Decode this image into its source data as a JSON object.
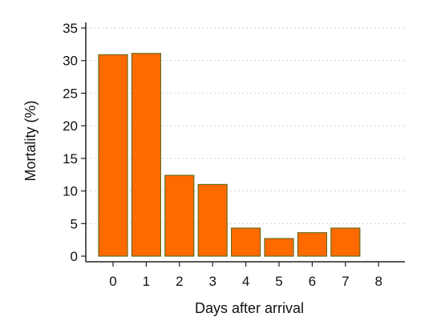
{
  "chart_data": {
    "type": "bar",
    "categories": [
      "0",
      "1",
      "2",
      "3",
      "4",
      "5",
      "6",
      "7",
      "8"
    ],
    "values": [
      30.9,
      31.1,
      12.4,
      11.0,
      4.3,
      2.7,
      3.6,
      4.3,
      0
    ],
    "xlabel": "Days after arrival",
    "ylabel": "Mortality (%)",
    "ylim": [
      0,
      35
    ],
    "yticks": [
      "0",
      "5",
      "10",
      "15",
      "20",
      "25",
      "30",
      "35"
    ],
    "grid": "horizontal-dotted",
    "colors": {
      "bar_fill": "#ff6a00",
      "bar_stroke": "#6b6b1a",
      "axis": "#222222",
      "grid": "#cfcfcf"
    }
  }
}
